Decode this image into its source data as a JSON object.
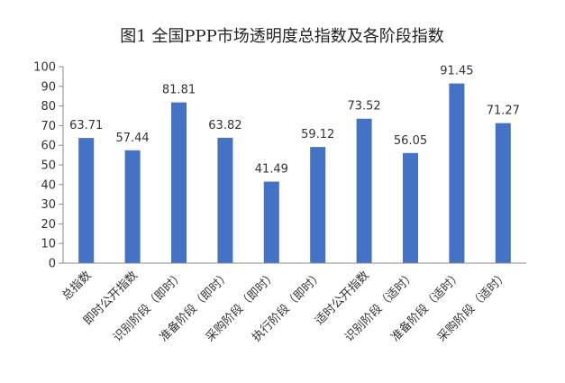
{
  "chart_data": {
    "type": "bar",
    "title": "图1  全国PPP市场透明度总指数及各阶段指数",
    "categories": [
      "总指数",
      "即时公开指数",
      "识别阶段（即时）",
      "准备阶段（即时）",
      "采购阶段（即时）",
      "执行阶段（即时）",
      "适时公开指数",
      "识别阶段（适时）",
      "准备阶段（适时）",
      "采购阶段（适时）"
    ],
    "values": [
      63.71,
      57.44,
      81.81,
      63.82,
      41.49,
      59.12,
      73.52,
      56.05,
      91.45,
      71.27
    ],
    "data_labels": [
      "63.71",
      "57.44",
      "81.81",
      "63.82",
      "41.49",
      "59.12",
      "73.52",
      "56.05",
      "91.45",
      "71.27"
    ],
    "ylim": [
      0,
      100
    ],
    "yticks": [
      "0",
      "10",
      "20",
      "30",
      "40",
      "50",
      "60",
      "70",
      "80",
      "90",
      "100"
    ],
    "bar_color": "#4472C4",
    "grid": false,
    "legend": "none"
  }
}
